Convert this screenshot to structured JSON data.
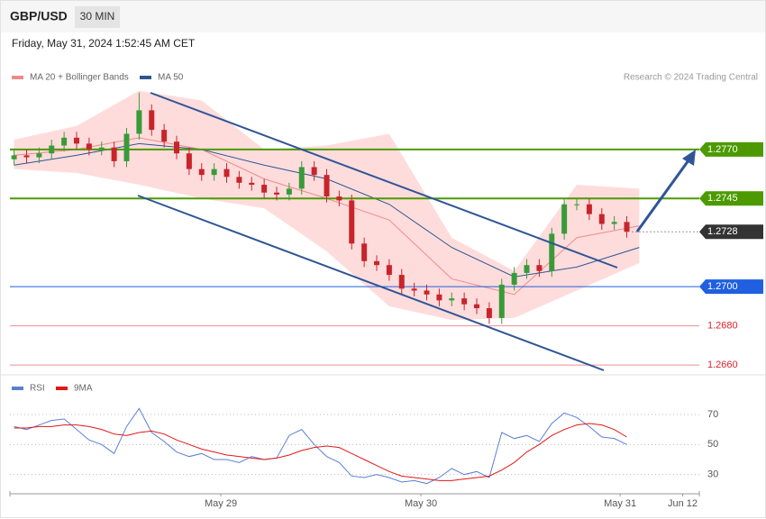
{
  "header": {
    "symbol": "GBP/USD",
    "timeframe": "30 MIN",
    "timestamp": "Friday, May 31, 2024 1:52:45 AM CET",
    "credit": "Research © 2024 Trading Central"
  },
  "chart_data": [
    {
      "type": "candlestick",
      "up_color": "#3a9a3a",
      "down_color": "#c8242b",
      "x": [
        1,
        4,
        7,
        10,
        13,
        16,
        19,
        22,
        25,
        28,
        31,
        34,
        37,
        40,
        43,
        46,
        49,
        52,
        55,
        58,
        61,
        64,
        67,
        70,
        73,
        76,
        79,
        82,
        85,
        88,
        91,
        94,
        97,
        100,
        103,
        106,
        109,
        112,
        115,
        118,
        121,
        124,
        127,
        130,
        133,
        136,
        139,
        142,
        145,
        148
      ],
      "open": [
        1.2765,
        1.2767,
        1.2766,
        1.2768,
        1.2772,
        1.2776,
        1.2773,
        1.277,
        1.2771,
        1.2764,
        1.2778,
        1.279,
        1.278,
        1.2774,
        1.2768,
        1.276,
        1.2757,
        1.276,
        1.2756,
        1.2753,
        1.2752,
        1.2748,
        1.2747,
        1.275,
        1.2761,
        1.2757,
        1.2746,
        1.2744,
        1.2722,
        1.2713,
        1.2711,
        1.2706,
        1.2699,
        1.2698,
        1.2696,
        1.2693,
        1.2694,
        1.2691,
        1.2689,
        1.2684,
        1.2701,
        1.2707,
        1.2711,
        1.2708,
        1.2727,
        1.2742,
        1.2742,
        1.2737,
        1.2732,
        1.2733
      ],
      "high": [
        1.277,
        1.277,
        1.2771,
        1.2775,
        1.2779,
        1.2779,
        1.2776,
        1.2774,
        1.2774,
        1.2781,
        1.2799,
        1.2793,
        1.2783,
        1.2777,
        1.2771,
        1.2763,
        1.2763,
        1.2763,
        1.2759,
        1.2756,
        1.2755,
        1.2751,
        1.2753,
        1.2764,
        1.2764,
        1.276,
        1.2749,
        1.2747,
        1.2725,
        1.2716,
        1.2714,
        1.2709,
        1.2702,
        1.2701,
        1.2699,
        1.2697,
        1.2697,
        1.2694,
        1.2692,
        1.2704,
        1.271,
        1.2714,
        1.2714,
        1.273,
        1.2745,
        1.2745,
        1.2745,
        1.274,
        1.2736,
        1.2736
      ],
      "low": [
        1.2762,
        1.2763,
        1.2763,
        1.2765,
        1.2769,
        1.277,
        1.2767,
        1.2767,
        1.2761,
        1.2761,
        1.2775,
        1.2777,
        1.2771,
        1.2765,
        1.2757,
        1.2754,
        1.2754,
        1.2753,
        1.275,
        1.2749,
        1.2745,
        1.2744,
        1.2744,
        1.2747,
        1.2754,
        1.2743,
        1.2741,
        1.2719,
        1.271,
        1.2708,
        1.2703,
        1.2696,
        1.2695,
        1.2693,
        1.269,
        1.269,
        1.2688,
        1.2686,
        1.2681,
        1.2681,
        1.2698,
        1.2704,
        1.2705,
        1.2705,
        1.2724,
        1.2739,
        1.2734,
        1.2729,
        1.2729,
        1.2725
      ],
      "close": [
        1.2767,
        1.2766,
        1.2768,
        1.2772,
        1.2776,
        1.2773,
        1.277,
        1.2771,
        1.2764,
        1.2778,
        1.279,
        1.278,
        1.2774,
        1.2768,
        1.276,
        1.2757,
        1.276,
        1.2756,
        1.2753,
        1.2752,
        1.2748,
        1.2747,
        1.275,
        1.2761,
        1.2757,
        1.2746,
        1.2744,
        1.2722,
        1.2713,
        1.2711,
        1.2706,
        1.2699,
        1.2698,
        1.2696,
        1.2693,
        1.2694,
        1.2691,
        1.2689,
        1.2684,
        1.2701,
        1.2707,
        1.2711,
        1.2708,
        1.2727,
        1.2742,
        1.2742,
        1.2737,
        1.2732,
        1.2733,
        1.2728
      ],
      "xlim": [
        0,
        165.4
      ],
      "ylim": [
        1.2655,
        1.2815
      ],
      "overlay_x": [
        1,
        16,
        31,
        46,
        61,
        76,
        91,
        106,
        121,
        136,
        151
      ],
      "overlays": [
        {
          "name": "MA 20 + Bollinger Bands",
          "color": "#f08a8a",
          "band_color": "#ffd6d6",
          "values": [
            1.2767,
            1.277,
            1.2776,
            1.277,
            1.2755,
            1.2745,
            1.2734,
            1.2704,
            1.2696,
            1.2725,
            1.2731
          ],
          "upper": [
            1.2775,
            1.2782,
            1.28,
            1.2795,
            1.277,
            1.2772,
            1.2778,
            1.2725,
            1.2708,
            1.2752,
            1.275
          ],
          "lower": [
            1.276,
            1.2758,
            1.2752,
            1.2745,
            1.274,
            1.2718,
            1.269,
            1.2683,
            1.2684,
            1.2698,
            1.2712
          ]
        },
        {
          "name": "MA 50",
          "color": "#2c5791",
          "values": [
            1.2762,
            1.2767,
            1.2773,
            1.277,
            1.2762,
            1.2755,
            1.2742,
            1.272,
            1.2705,
            1.271,
            1.272
          ]
        }
      ],
      "levels": [
        {
          "value": 1.277,
          "label": "1.2770",
          "color": "#4c9a00",
          "box": true,
          "line": "solid"
        },
        {
          "value": 1.2745,
          "label": "1.2745",
          "color": "#4c9a00",
          "box": true,
          "line": "solid"
        },
        {
          "value": 1.2728,
          "label": "1.2728",
          "color": "#333333",
          "box": true,
          "line": "dotted"
        },
        {
          "value": 1.27,
          "label": "1.2700",
          "color": "#1f5fe0",
          "box": true,
          "line": "solid"
        },
        {
          "value": 1.268,
          "label": "1.2680",
          "color": "#e0202a",
          "box": false,
          "line": "solid"
        },
        {
          "value": 1.266,
          "label": "1.2660",
          "color": "#e0202a",
          "box": false,
          "line": "solid"
        }
      ]
    },
    {
      "type": "line",
      "xlim": [
        0,
        165.4
      ],
      "ylim": [
        19,
        94
      ],
      "yticks": [
        30,
        50,
        70
      ],
      "xticks": [
        {
          "value": 50.6,
          "label": "May 29"
        },
        {
          "value": 98.6,
          "label": "May 30"
        },
        {
          "value": 146.4,
          "label": "May 31"
        },
        {
          "value": 161.4,
          "label": "Jun 12"
        }
      ],
      "series": [
        {
          "name": "RSI",
          "color": "#5b7fd6",
          "values": [
            62,
            60,
            63,
            66,
            67,
            60,
            53,
            50,
            44,
            62,
            74,
            58,
            52,
            45,
            42,
            44,
            40,
            40,
            38,
            42,
            40,
            41,
            56,
            60,
            50,
            42,
            38,
            29,
            28,
            30,
            28,
            25,
            26,
            24,
            28,
            34,
            30,
            32,
            28,
            58,
            54,
            56,
            52,
            64,
            71,
            68,
            62,
            55,
            54,
            50
          ]
        },
        {
          "name": "9MA",
          "color": "#e01818",
          "values": [
            61,
            61,
            62,
            62,
            63,
            63,
            62,
            60,
            57,
            56,
            58,
            59,
            57,
            53,
            50,
            47,
            45,
            43,
            42,
            41,
            40,
            41,
            43,
            46,
            48,
            49,
            48,
            44,
            40,
            36,
            32,
            29,
            28,
            27,
            26,
            26,
            27,
            28,
            29,
            33,
            38,
            45,
            50,
            56,
            60,
            63,
            64,
            63,
            60,
            55
          ]
        }
      ]
    }
  ]
}
